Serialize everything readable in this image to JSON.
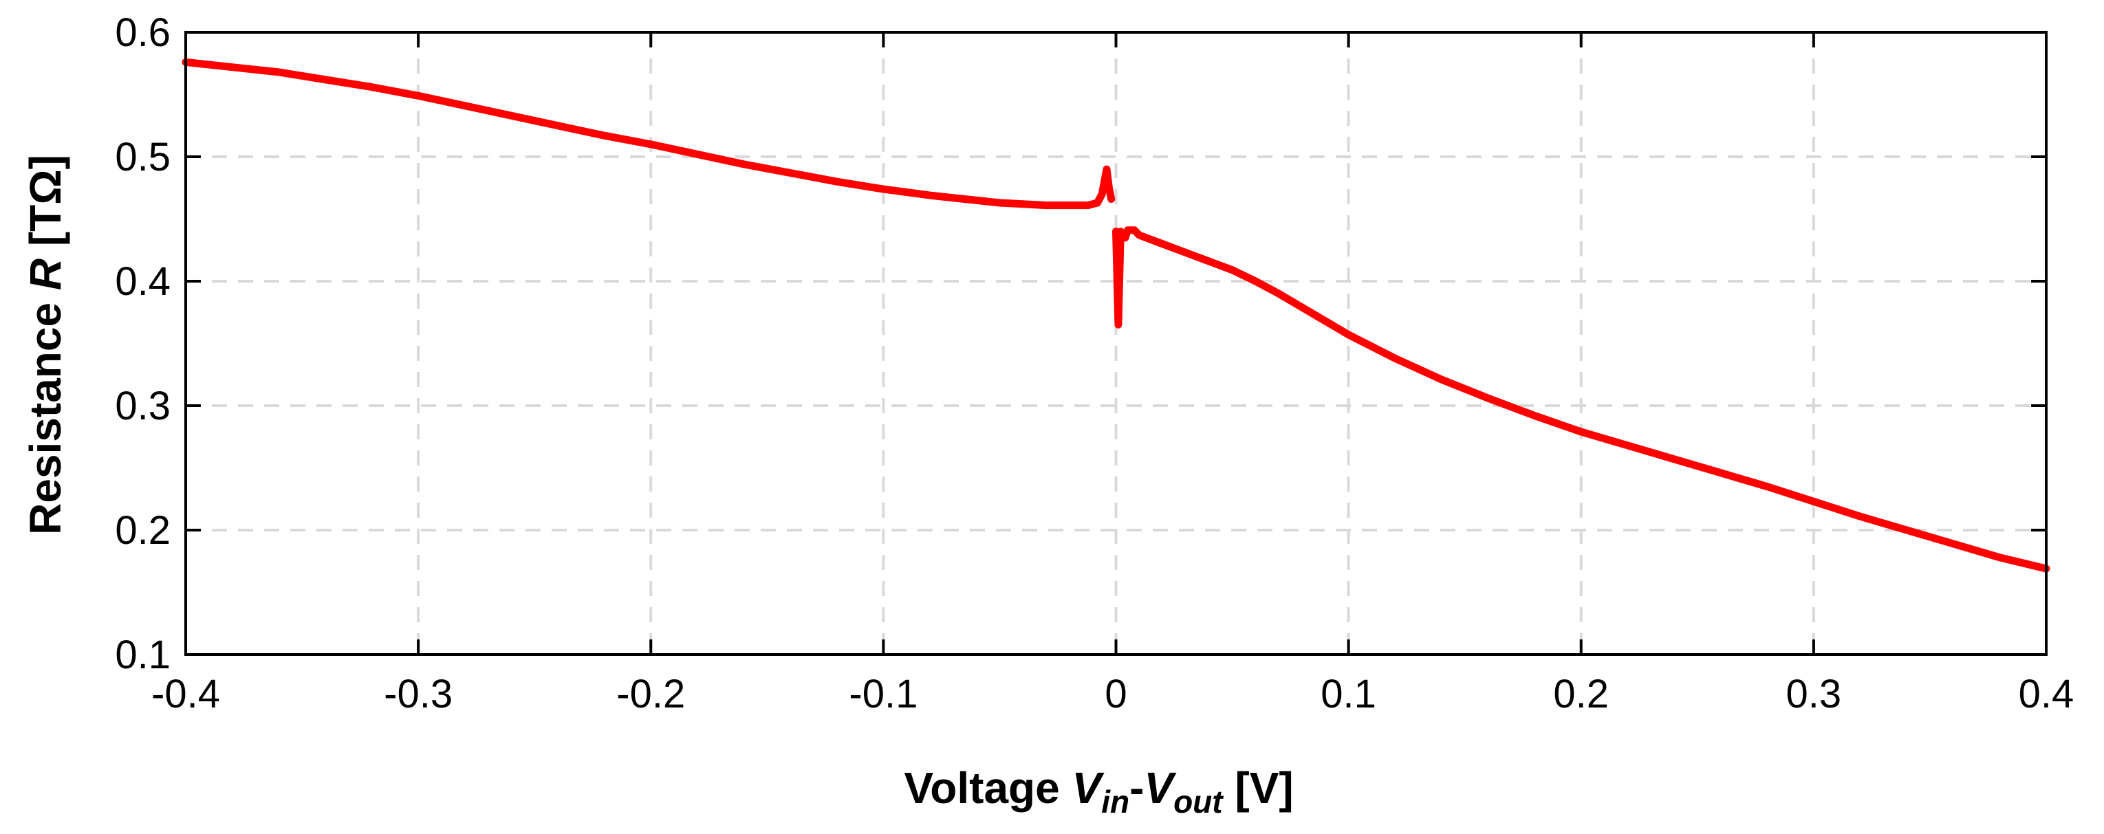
{
  "chart_data": {
    "type": "line",
    "title": "",
    "xlabel_parts": [
      {
        "text": "Voltage ",
        "italic": false,
        "sub": false
      },
      {
        "text": "V",
        "italic": true,
        "sub": false
      },
      {
        "text": "in",
        "italic": true,
        "sub": true
      },
      {
        "text": "-",
        "italic": false,
        "sub": false
      },
      {
        "text": "V",
        "italic": true,
        "sub": false
      },
      {
        "text": "out",
        "italic": true,
        "sub": true
      },
      {
        "text": " [V]",
        "italic": false,
        "sub": false
      }
    ],
    "ylabel_parts": [
      {
        "text": "Resistance ",
        "italic": false,
        "sub": false
      },
      {
        "text": "R",
        "italic": true,
        "sub": false
      },
      {
        "text": " [TΩ]",
        "italic": false,
        "sub": false
      }
    ],
    "xlim": [
      -0.4,
      0.4
    ],
    "ylim": [
      0.1,
      0.6
    ],
    "xticks": [
      -0.4,
      -0.3,
      -0.2,
      -0.1,
      0,
      0.1,
      0.2,
      0.3,
      0.4
    ],
    "xtick_labels": [
      "-0.4",
      "-0.3",
      "-0.2",
      "-0.1",
      "0",
      "0.1",
      "0.2",
      "0.3",
      "0.4"
    ],
    "yticks": [
      0.1,
      0.2,
      0.3,
      0.4,
      0.5,
      0.6
    ],
    "ytick_labels": [
      "0.1",
      "0.2",
      "0.3",
      "0.4",
      "0.5",
      "0.6"
    ],
    "grid": true,
    "colors": {
      "series": "#ff0000",
      "grid": "#d9d9d9",
      "axes": "#000000"
    },
    "series": [
      {
        "segment": "negative",
        "x": [
          -0.4,
          -0.38,
          -0.36,
          -0.34,
          -0.32,
          -0.3,
          -0.28,
          -0.26,
          -0.24,
          -0.22,
          -0.2,
          -0.18,
          -0.16,
          -0.14,
          -0.12,
          -0.1,
          -0.08,
          -0.06,
          -0.05,
          -0.04,
          -0.03,
          -0.02,
          -0.012,
          -0.008,
          -0.006,
          -0.004,
          -0.003,
          -0.002
        ],
        "y": [
          0.576,
          0.572,
          0.568,
          0.562,
          0.556,
          0.549,
          0.541,
          0.533,
          0.525,
          0.517,
          0.51,
          0.502,
          0.494,
          0.487,
          0.48,
          0.474,
          0.469,
          0.465,
          0.463,
          0.462,
          0.461,
          0.461,
          0.461,
          0.463,
          0.47,
          0.49,
          0.475,
          0.466
        ]
      },
      {
        "segment": "positive",
        "x": [
          0.0,
          0.001,
          0.002,
          0.002,
          0.004,
          0.005,
          0.008,
          0.01,
          0.02,
          0.03,
          0.04,
          0.05,
          0.06,
          0.07,
          0.08,
          0.09,
          0.1,
          0.12,
          0.14,
          0.16,
          0.18,
          0.2,
          0.22,
          0.24,
          0.26,
          0.28,
          0.3,
          0.32,
          0.34,
          0.36,
          0.38,
          0.4
        ],
        "y": [
          0.44,
          0.365,
          0.44,
          0.435,
          0.435,
          0.441,
          0.441,
          0.437,
          0.43,
          0.423,
          0.416,
          0.409,
          0.4,
          0.39,
          0.379,
          0.368,
          0.357,
          0.338,
          0.321,
          0.306,
          0.292,
          0.279,
          0.268,
          0.257,
          0.246,
          0.235,
          0.223,
          0.211,
          0.2,
          0.189,
          0.178,
          0.169
        ]
      }
    ]
  }
}
